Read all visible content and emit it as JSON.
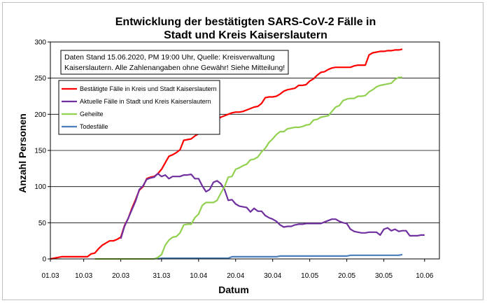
{
  "chart_data": {
    "type": "line",
    "title_lines": [
      "Entwicklung der bestätigten SARS-CoV-2 Fälle in",
      "Stadt und Kreis Kaiserslautern"
    ],
    "xlabel": "Datum",
    "ylabel": "Anzahl Personen",
    "ylim": [
      0,
      300
    ],
    "yticks": [
      0,
      50,
      100,
      150,
      200,
      250,
      300
    ],
    "x_start": "01.03",
    "x_end": "15.06",
    "xticks": [
      {
        "label": "01.03",
        "day": 0
      },
      {
        "label": "10.03",
        "day": 9
      },
      {
        "label": "20.03",
        "day": 19
      },
      {
        "label": "31.03",
        "day": 30
      },
      {
        "label": "10.04",
        "day": 40
      },
      {
        "label": "20.04",
        "day": 50
      },
      {
        "label": "30.04",
        "day": 60
      },
      {
        "label": "10.05",
        "day": 70
      },
      {
        "label": "20.05",
        "day": 80
      },
      {
        "label": "30.05",
        "day": 90
      },
      {
        "label": "10.06",
        "day": 101
      }
    ],
    "grid": "horizontal",
    "annotation": [
      "Daten Stand 15.06.2020, PM 19:00 Uhr, Quelle: Kreisverwaltung",
      "Kaiserslautern. Alle Zahlenangaben ohne Gewähr! Siehe Mitteilung!"
    ],
    "legend_position": "top-left",
    "series": [
      {
        "name": "Bestätigte Fälle in Kreis und Stadt Kaiserslautern",
        "color": "#ff0000",
        "points": [
          [
            0,
            0
          ],
          [
            1,
            1
          ],
          [
            2,
            2
          ],
          [
            3,
            3
          ],
          [
            4,
            3
          ],
          [
            5,
            3
          ],
          [
            6,
            3
          ],
          [
            7,
            3
          ],
          [
            8,
            3
          ],
          [
            9,
            3
          ],
          [
            10,
            3
          ],
          [
            11,
            7
          ],
          [
            12,
            8
          ],
          [
            13,
            14
          ],
          [
            14,
            19
          ],
          [
            15,
            22
          ],
          [
            16,
            25
          ],
          [
            17,
            25
          ],
          [
            18,
            27
          ],
          [
            19,
            30
          ],
          [
            20,
            46
          ],
          [
            21,
            56
          ],
          [
            22,
            70
          ],
          [
            23,
            82
          ],
          [
            24,
            95
          ],
          [
            25,
            100
          ],
          [
            26,
            111
          ],
          [
            27,
            113
          ],
          [
            28,
            114
          ],
          [
            29,
            118
          ],
          [
            30,
            124
          ],
          [
            31,
            133
          ],
          [
            32,
            142
          ],
          [
            33,
            144
          ],
          [
            34,
            147
          ],
          [
            35,
            151
          ],
          [
            36,
            164
          ],
          [
            37,
            165
          ],
          [
            38,
            166
          ],
          [
            39,
            170
          ],
          [
            40,
            173
          ],
          [
            41,
            173
          ],
          [
            42,
            176
          ],
          [
            43,
            185
          ],
          [
            44,
            190
          ],
          [
            45,
            193
          ],
          [
            46,
            196
          ],
          [
            47,
            198
          ],
          [
            48,
            200
          ],
          [
            49,
            202
          ],
          [
            50,
            203
          ],
          [
            51,
            203
          ],
          [
            52,
            204
          ],
          [
            53,
            206
          ],
          [
            54,
            208
          ],
          [
            55,
            210
          ],
          [
            56,
            211
          ],
          [
            57,
            215
          ],
          [
            58,
            223
          ],
          [
            59,
            224
          ],
          [
            60,
            224
          ],
          [
            61,
            225
          ],
          [
            62,
            228
          ],
          [
            63,
            232
          ],
          [
            64,
            234
          ],
          [
            65,
            235
          ],
          [
            66,
            236
          ],
          [
            67,
            240
          ],
          [
            68,
            240
          ],
          [
            69,
            241
          ],
          [
            70,
            246
          ],
          [
            71,
            249
          ],
          [
            72,
            254
          ],
          [
            73,
            258
          ],
          [
            74,
            259
          ],
          [
            75,
            262
          ],
          [
            76,
            264
          ],
          [
            77,
            265
          ],
          [
            78,
            265
          ],
          [
            79,
            265
          ],
          [
            80,
            265
          ],
          [
            81,
            265
          ],
          [
            82,
            267
          ],
          [
            83,
            268
          ],
          [
            84,
            268
          ],
          [
            85,
            268
          ],
          [
            86,
            282
          ],
          [
            87,
            285
          ],
          [
            88,
            286
          ],
          [
            89,
            287
          ],
          [
            90,
            287
          ],
          [
            91,
            288
          ],
          [
            92,
            288
          ],
          [
            93,
            289
          ],
          [
            94,
            289
          ],
          [
            95,
            290
          ]
        ]
      },
      {
        "name": "Aktuelle Fälle in Stadt und Kreis Kaiserslautern",
        "color": "#7030a0",
        "points": [
          [
            19,
            28
          ],
          [
            20,
            45
          ],
          [
            21,
            56
          ],
          [
            22,
            68
          ],
          [
            23,
            80
          ],
          [
            24,
            96
          ],
          [
            25,
            101
          ],
          [
            26,
            110
          ],
          [
            27,
            112
          ],
          [
            28,
            113
          ],
          [
            29,
            118
          ],
          [
            30,
            114
          ],
          [
            31,
            116
          ],
          [
            32,
            111
          ],
          [
            33,
            114
          ],
          [
            34,
            114
          ],
          [
            35,
            114
          ],
          [
            36,
            116
          ],
          [
            37,
            116
          ],
          [
            38,
            117
          ],
          [
            39,
            111
          ],
          [
            40,
            111
          ],
          [
            41,
            101
          ],
          [
            42,
            93
          ],
          [
            43,
            96
          ],
          [
            44,
            106
          ],
          [
            45,
            108
          ],
          [
            46,
            104
          ],
          [
            47,
            96
          ],
          [
            48,
            81
          ],
          [
            49,
            82
          ],
          [
            50,
            76
          ],
          [
            51,
            73
          ],
          [
            52,
            72
          ],
          [
            53,
            71
          ],
          [
            54,
            65
          ],
          [
            55,
            70
          ],
          [
            56,
            66
          ],
          [
            57,
            66
          ],
          [
            58,
            60
          ],
          [
            59,
            57
          ],
          [
            60,
            55
          ],
          [
            61,
            52
          ],
          [
            62,
            47
          ],
          [
            63,
            44
          ],
          [
            64,
            45
          ],
          [
            65,
            45
          ],
          [
            66,
            47
          ],
          [
            67,
            48
          ],
          [
            68,
            48
          ],
          [
            69,
            49
          ],
          [
            70,
            49
          ],
          [
            71,
            49
          ],
          [
            72,
            49
          ],
          [
            73,
            49
          ],
          [
            74,
            51
          ],
          [
            75,
            53
          ],
          [
            76,
            55
          ],
          [
            77,
            55
          ],
          [
            78,
            52
          ],
          [
            79,
            50
          ],
          [
            80,
            49
          ],
          [
            81,
            41
          ],
          [
            82,
            38
          ],
          [
            83,
            37
          ],
          [
            84,
            36
          ],
          [
            85,
            36
          ],
          [
            86,
            37
          ],
          [
            87,
            37
          ],
          [
            88,
            37
          ],
          [
            89,
            33
          ],
          [
            90,
            41
          ],
          [
            91,
            43
          ],
          [
            92,
            39
          ],
          [
            93,
            41
          ],
          [
            94,
            38
          ],
          [
            95,
            39
          ],
          [
            96,
            39
          ],
          [
            97,
            32
          ],
          [
            98,
            32
          ],
          [
            99,
            32
          ],
          [
            100,
            33
          ],
          [
            101,
            33
          ]
        ]
      },
      {
        "name": "Geheilte",
        "color": "#92d050",
        "points": [
          [
            12,
            0
          ],
          [
            28,
            0
          ],
          [
            29,
            2
          ],
          [
            30,
            6
          ],
          [
            31,
            19
          ],
          [
            32,
            26
          ],
          [
            33,
            30
          ],
          [
            34,
            31
          ],
          [
            35,
            36
          ],
          [
            36,
            47
          ],
          [
            37,
            48
          ],
          [
            38,
            48
          ],
          [
            39,
            57
          ],
          [
            40,
            62
          ],
          [
            41,
            74
          ],
          [
            42,
            78
          ],
          [
            43,
            78
          ],
          [
            44,
            78
          ],
          [
            45,
            81
          ],
          [
            46,
            91
          ],
          [
            47,
            100
          ],
          [
            48,
            113
          ],
          [
            49,
            114
          ],
          [
            50,
            124
          ],
          [
            51,
            126
          ],
          [
            52,
            129
          ],
          [
            53,
            131
          ],
          [
            54,
            137
          ],
          [
            55,
            138
          ],
          [
            56,
            141
          ],
          [
            57,
            148
          ],
          [
            58,
            153
          ],
          [
            59,
            161
          ],
          [
            60,
            166
          ],
          [
            61,
            172
          ],
          [
            62,
            176
          ],
          [
            63,
            176
          ],
          [
            64,
            180
          ],
          [
            65,
            181
          ],
          [
            66,
            182
          ],
          [
            67,
            182
          ],
          [
            68,
            183
          ],
          [
            69,
            185
          ],
          [
            70,
            186
          ],
          [
            71,
            192
          ],
          [
            72,
            193
          ],
          [
            73,
            196
          ],
          [
            74,
            197
          ],
          [
            75,
            198
          ],
          [
            76,
            204
          ],
          [
            77,
            210
          ],
          [
            78,
            212
          ],
          [
            79,
            219
          ],
          [
            80,
            221
          ],
          [
            81,
            222
          ],
          [
            82,
            222
          ],
          [
            83,
            225
          ],
          [
            84,
            225
          ],
          [
            85,
            226
          ],
          [
            86,
            231
          ],
          [
            87,
            234
          ],
          [
            88,
            238
          ],
          [
            89,
            240
          ],
          [
            90,
            241
          ],
          [
            91,
            242
          ],
          [
            92,
            243
          ],
          [
            93,
            248
          ],
          [
            94,
            251
          ],
          [
            95,
            251
          ]
        ]
      },
      {
        "name": "Todesfälle",
        "color": "#4a7ebb",
        "points": [
          [
            29,
            0
          ],
          [
            30,
            1
          ],
          [
            31,
            1
          ],
          [
            48,
            1
          ],
          [
            49,
            3
          ],
          [
            61,
            3
          ],
          [
            62,
            4
          ],
          [
            80,
            4
          ],
          [
            81,
            5
          ],
          [
            94,
            5
          ],
          [
            95,
            6
          ]
        ]
      }
    ]
  }
}
